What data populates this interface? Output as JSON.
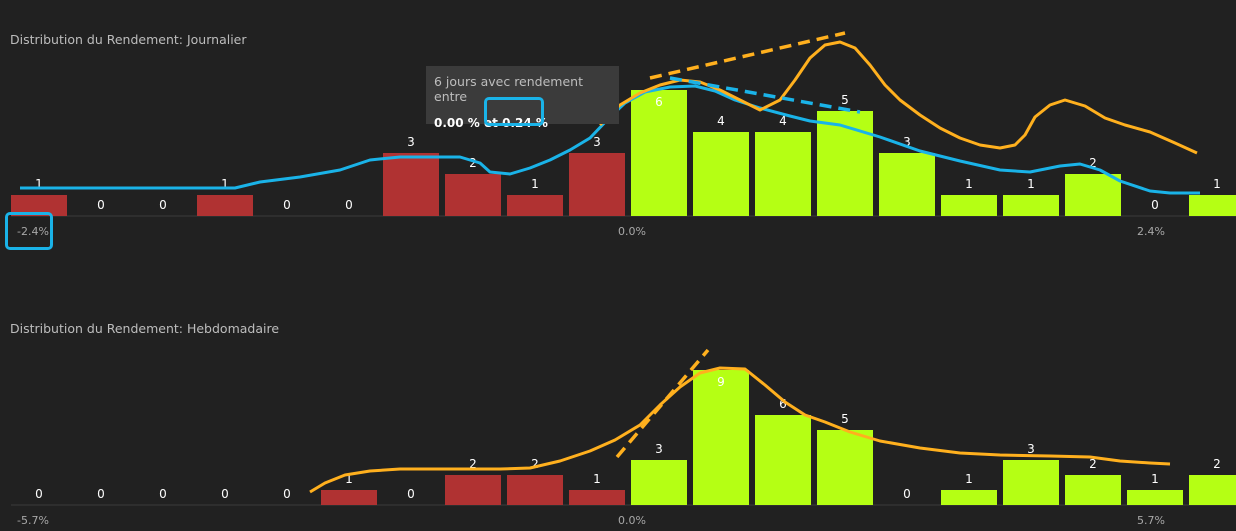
{
  "colors": {
    "background": "#212121",
    "negative_bar": "#b03232",
    "positive_bar": "#b5ff14",
    "curve_orange": "#ffb01e",
    "curve_blue": "#1ab3e8"
  },
  "tooltip": {
    "line1": "6 jours avec rendement entre",
    "line2_prefix": "0.00 % et",
    "line2_value": "0.24 %"
  },
  "chart_data": [
    {
      "type": "bar",
      "title": "Distribution du Rendement: Journalier",
      "x_ticks": [
        "-2.4%",
        "0.0%",
        "2.4%"
      ],
      "bin_width_pct": 0.24,
      "x_range_pct": [
        -2.4,
        2.64
      ],
      "values": [
        1,
        0,
        0,
        1,
        0,
        0,
        3,
        2,
        1,
        3,
        6,
        4,
        4,
        5,
        3,
        1,
        1,
        2,
        0,
        1
      ],
      "negative_bins": 10,
      "ylim": [
        0,
        6.5
      ],
      "overlay_curves": [
        "orange",
        "blue"
      ],
      "trend_lines": [
        "orange dashed rising",
        "blue dashed falling"
      ]
    },
    {
      "type": "bar",
      "title": "Distribution du Rendement: Hebdomadaire",
      "x_ticks": [
        "-5.7%",
        "0.0%",
        "5.7%"
      ],
      "bin_width_pct": 0.57,
      "x_range_pct": [
        -5.7,
        6.27
      ],
      "values": [
        0,
        0,
        0,
        0,
        0,
        1,
        0,
        2,
        2,
        1,
        3,
        9,
        6,
        5,
        0,
        1,
        3,
        2,
        1,
        2
      ],
      "negative_bins": 10,
      "ylim": [
        0,
        9.5
      ],
      "overlay_curves": [
        "orange"
      ],
      "trend_lines": [
        "orange dashed rising"
      ]
    }
  ]
}
